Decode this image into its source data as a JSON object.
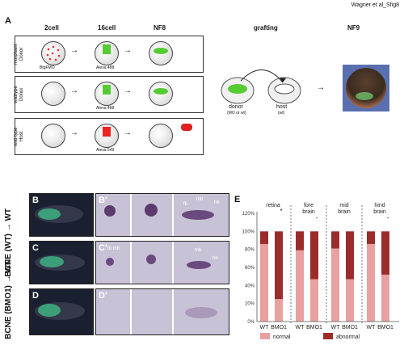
{
  "watermark": "Wagner et al_Sfig8",
  "panel_a": {
    "label": "A",
    "col_headers": [
      "2cell",
      "16cell",
      "NF8"
    ],
    "grafting_header": "grafting",
    "nf9_header": "NF9",
    "rows": [
      {
        "label": "morphant Donor",
        "cell2_note": "BtgFMO",
        "cell16_note": "Alexa 488"
      },
      {
        "label": "wildtype Donor",
        "cell2_note": "",
        "cell16_note": "Alexa 488"
      },
      {
        "label": "wild type Host",
        "cell2_note": "",
        "cell16_note": "Alexa 549"
      }
    ],
    "donor_label": "donor",
    "donor_sub": "(MO or wt)",
    "host_label": "host",
    "host_sub": "(wt)"
  },
  "panel_b": {
    "label": "B",
    "label_prime": "B′",
    "side_label": "BCNE (WT) → WT",
    "annotations": [
      "fb",
      "mb",
      "hb"
    ]
  },
  "panel_c": {
    "label": "C",
    "label_prime": "C′",
    "annotations": [
      "fb mb",
      "mb",
      "hb"
    ]
  },
  "panel_d": {
    "label": "D",
    "label_prime": "D′",
    "side_label": "BCNE (BMO1) → WT"
  },
  "panel_e": {
    "label": "E",
    "legend": [
      {
        "name": "normal",
        "color": "#e8a0a0"
      },
      {
        "name": "abnormal",
        "color": "#9b2c2c"
      }
    ]
  },
  "chart_data": {
    "type": "bar",
    "stacked": true,
    "ylim": [
      0,
      120
    ],
    "yticks": [
      "0%",
      "20%",
      "40%",
      "60%",
      "80%",
      "100%",
      "120%"
    ],
    "groups": [
      {
        "name": "retina",
        "marker": "*",
        "categories": [
          "WT",
          "BMO1"
        ],
        "normal": [
          86,
          25
        ],
        "abnormal": [
          14,
          75
        ]
      },
      {
        "name": "fore brain",
        "marker": "-",
        "categories": [
          "WT",
          "BMO1"
        ],
        "normal": [
          79,
          47
        ],
        "abnormal": [
          21,
          53
        ]
      },
      {
        "name": "mid brain",
        "marker": "",
        "categories": [
          "WT",
          "BMO1"
        ],
        "normal": [
          81,
          47
        ],
        "abnormal": [
          19,
          53
        ]
      },
      {
        "name": "hind brain",
        "marker": "-",
        "categories": [
          "WT",
          "BMO1"
        ],
        "normal": [
          86,
          52
        ],
        "abnormal": [
          14,
          48
        ]
      }
    ],
    "series": [
      {
        "name": "normal"
      },
      {
        "name": "abnormal"
      }
    ]
  }
}
